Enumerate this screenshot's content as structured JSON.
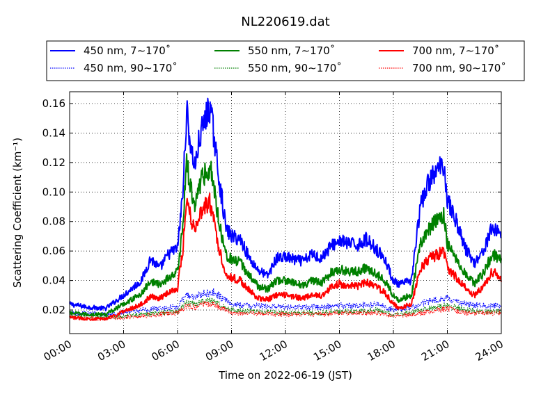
{
  "chart_data": {
    "type": "line",
    "title": "NL220619.dat",
    "xlabel": "Time on 2022-06-19 (JST)",
    "ylabel": "Scattering Coefficient (km⁻¹)",
    "x_unit": "hours (JST)",
    "xlim": [
      0,
      24
    ],
    "ylim": [
      0.004,
      0.168
    ],
    "x_ticks": [
      0,
      3,
      6,
      9,
      12,
      15,
      18,
      21,
      24
    ],
    "x_tick_labels": [
      "00:00",
      "03:00",
      "06:00",
      "09:00",
      "12:00",
      "15:00",
      "18:00",
      "21:00",
      "24:00"
    ],
    "y_ticks": [
      0.02,
      0.04,
      0.06,
      0.08,
      0.1,
      0.12,
      0.14,
      0.16
    ],
    "y_tick_labels": [
      "0.02",
      "0.04",
      "0.06",
      "0.08",
      "0.10",
      "0.12",
      "0.14",
      "0.16"
    ],
    "grid": true,
    "legend_position": "above plot, three columns",
    "series": [
      {
        "name": "450 nm, 7∼170˚",
        "color": "#0000ff",
        "style": "solid",
        "x": [
          0,
          1,
          2,
          3,
          4,
          4.5,
          5,
          5.5,
          6,
          6.3,
          6.5,
          6.8,
          7,
          7.2,
          7.5,
          7.8,
          8,
          8.3,
          8.7,
          9,
          9.5,
          10,
          10.5,
          11,
          11.5,
          12,
          12.5,
          13,
          13.5,
          14,
          14.5,
          15,
          15.5,
          16,
          16.5,
          17,
          17.5,
          18,
          18.3,
          19,
          19.5,
          20,
          20.5,
          20.8,
          21,
          21.5,
          22,
          22.5,
          23,
          23.5,
          24
        ],
        "y": [
          0.024,
          0.022,
          0.021,
          0.03,
          0.04,
          0.055,
          0.048,
          0.058,
          0.062,
          0.1,
          0.155,
          0.125,
          0.118,
          0.135,
          0.148,
          0.158,
          0.14,
          0.11,
          0.075,
          0.07,
          0.068,
          0.055,
          0.047,
          0.043,
          0.055,
          0.056,
          0.054,
          0.053,
          0.058,
          0.055,
          0.063,
          0.067,
          0.065,
          0.064,
          0.068,
          0.062,
          0.055,
          0.04,
          0.037,
          0.04,
          0.09,
          0.108,
          0.115,
          0.12,
          0.095,
          0.08,
          0.062,
          0.052,
          0.06,
          0.076,
          0.072
        ]
      },
      {
        "name": "550 nm, 7∼170˚",
        "color": "#008000",
        "style": "solid",
        "x": [
          0,
          1,
          2,
          3,
          4,
          4.5,
          5,
          5.5,
          6,
          6.3,
          6.5,
          6.8,
          7,
          7.2,
          7.5,
          7.8,
          8,
          8.3,
          8.7,
          9,
          9.5,
          10,
          10.5,
          11,
          11.5,
          12,
          12.5,
          13,
          13.5,
          14,
          14.5,
          15,
          15.5,
          16,
          16.5,
          17,
          17.5,
          18,
          18.3,
          19,
          19.5,
          20,
          20.5,
          20.8,
          21,
          21.5,
          22,
          22.5,
          23,
          23.5,
          24
        ],
        "y": [
          0.018,
          0.017,
          0.017,
          0.024,
          0.031,
          0.04,
          0.037,
          0.042,
          0.046,
          0.078,
          0.12,
          0.098,
          0.092,
          0.105,
          0.112,
          0.118,
          0.105,
          0.08,
          0.058,
          0.054,
          0.052,
          0.043,
          0.036,
          0.034,
          0.04,
          0.04,
          0.038,
          0.037,
          0.04,
          0.038,
          0.045,
          0.048,
          0.046,
          0.046,
          0.049,
          0.045,
          0.04,
          0.03,
          0.027,
          0.03,
          0.065,
          0.075,
          0.082,
          0.085,
          0.065,
          0.055,
          0.045,
          0.038,
          0.045,
          0.058,
          0.054
        ]
      },
      {
        "name": "700 nm, 7∼170˚",
        "color": "#ff0000",
        "style": "solid",
        "x": [
          0,
          1,
          2,
          3,
          4,
          4.5,
          5,
          5.5,
          6,
          6.3,
          6.5,
          6.8,
          7,
          7.2,
          7.5,
          7.8,
          8,
          8.3,
          8.7,
          9,
          9.5,
          10,
          10.5,
          11,
          11.5,
          12,
          12.5,
          13,
          13.5,
          14,
          14.5,
          15,
          15.5,
          16,
          16.5,
          17,
          17.5,
          18,
          18.3,
          19,
          19.5,
          20,
          20.5,
          20.8,
          21,
          21.5,
          22,
          22.5,
          23,
          23.5,
          24
        ],
        "y": [
          0.015,
          0.014,
          0.014,
          0.019,
          0.024,
          0.029,
          0.028,
          0.032,
          0.035,
          0.062,
          0.097,
          0.08,
          0.075,
          0.085,
          0.09,
          0.093,
          0.082,
          0.062,
          0.044,
          0.042,
          0.04,
          0.033,
          0.028,
          0.027,
          0.03,
          0.03,
          0.029,
          0.028,
          0.03,
          0.03,
          0.035,
          0.038,
          0.036,
          0.036,
          0.039,
          0.036,
          0.032,
          0.024,
          0.021,
          0.024,
          0.048,
          0.055,
          0.058,
          0.06,
          0.048,
          0.042,
          0.035,
          0.03,
          0.036,
          0.046,
          0.042
        ]
      },
      {
        "name": "450 nm, 90∼170˚",
        "color": "#0000ff",
        "style": "dotted",
        "x": [
          0,
          2,
          4,
          5,
          6,
          6.5,
          7,
          7.5,
          8,
          8.5,
          9,
          10,
          12,
          14,
          15,
          16,
          17,
          18,
          19,
          20,
          21,
          22,
          23,
          24
        ],
        "y": [
          0.018,
          0.017,
          0.02,
          0.021,
          0.022,
          0.03,
          0.029,
          0.031,
          0.032,
          0.028,
          0.024,
          0.023,
          0.022,
          0.022,
          0.023,
          0.023,
          0.024,
          0.02,
          0.022,
          0.026,
          0.028,
          0.024,
          0.023,
          0.023
        ]
      },
      {
        "name": "550 nm, 90∼170˚",
        "color": "#008000",
        "style": "dotted",
        "x": [
          0,
          2,
          4,
          5,
          6,
          6.5,
          7,
          7.5,
          8,
          8.5,
          9,
          10,
          12,
          14,
          15,
          16,
          17,
          18,
          19,
          20,
          21,
          22,
          23,
          24
        ],
        "y": [
          0.016,
          0.015,
          0.017,
          0.018,
          0.019,
          0.025,
          0.024,
          0.026,
          0.026,
          0.023,
          0.02,
          0.019,
          0.018,
          0.018,
          0.019,
          0.019,
          0.02,
          0.017,
          0.018,
          0.021,
          0.023,
          0.02,
          0.019,
          0.019
        ]
      },
      {
        "name": "700 nm, 90∼170˚",
        "color": "#ff0000",
        "style": "dotted",
        "x": [
          0,
          2,
          4,
          5,
          6,
          6.5,
          7,
          7.5,
          8,
          8.5,
          9,
          10,
          12,
          14,
          15,
          16,
          17,
          18,
          19,
          20,
          21,
          22,
          23,
          24
        ],
        "y": [
          0.015,
          0.014,
          0.016,
          0.017,
          0.018,
          0.023,
          0.022,
          0.024,
          0.024,
          0.021,
          0.018,
          0.018,
          0.017,
          0.017,
          0.018,
          0.018,
          0.018,
          0.016,
          0.017,
          0.019,
          0.021,
          0.018,
          0.018,
          0.018
        ]
      }
    ]
  }
}
